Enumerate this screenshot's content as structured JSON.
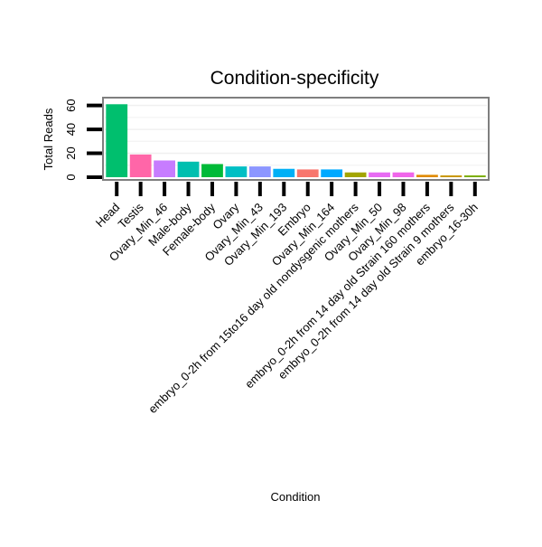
{
  "chart_data": {
    "type": "bar",
    "title": "Condition-specificity",
    "xlabel": "Condition",
    "ylabel": "Total Reads",
    "ylim": [
      0,
      65
    ],
    "yticks": [
      0,
      20,
      40,
      60
    ],
    "grid": true,
    "legend": "none",
    "categories": [
      "Head",
      "Testis",
      "Ovary_Min_46",
      "Male-body",
      "Female-body",
      "Ovary",
      "Ovary_Min_43",
      "Ovary_Min_193",
      "Embryo",
      "Ovary_Min_164",
      "embryo_0-2h from 15to16 day old nondysgenic mothers",
      "Ovary_Min_50",
      "Ovary_Min_98",
      "embryo_0-2h from 14 day old Strain 160 mothers",
      "embryo_0-2h from 14 day old Strain 9 mothers",
      "embryo_16-30h"
    ],
    "values": [
      61,
      19,
      14,
      13,
      11,
      9,
      9,
      7,
      6.5,
      6.5,
      4,
      4,
      4,
      2,
      1.5,
      1.5
    ],
    "colors": [
      "#00BF6E",
      "#FF66A8",
      "#C77CFF",
      "#00BFAF",
      "#00BA38",
      "#00BFC4",
      "#8C96FF",
      "#00B0F6",
      "#F8766D",
      "#00A9FF",
      "#A3A500",
      "#E76BF3",
      "#F066EA",
      "#E08B00",
      "#C99800",
      "#7CAE00"
    ]
  }
}
